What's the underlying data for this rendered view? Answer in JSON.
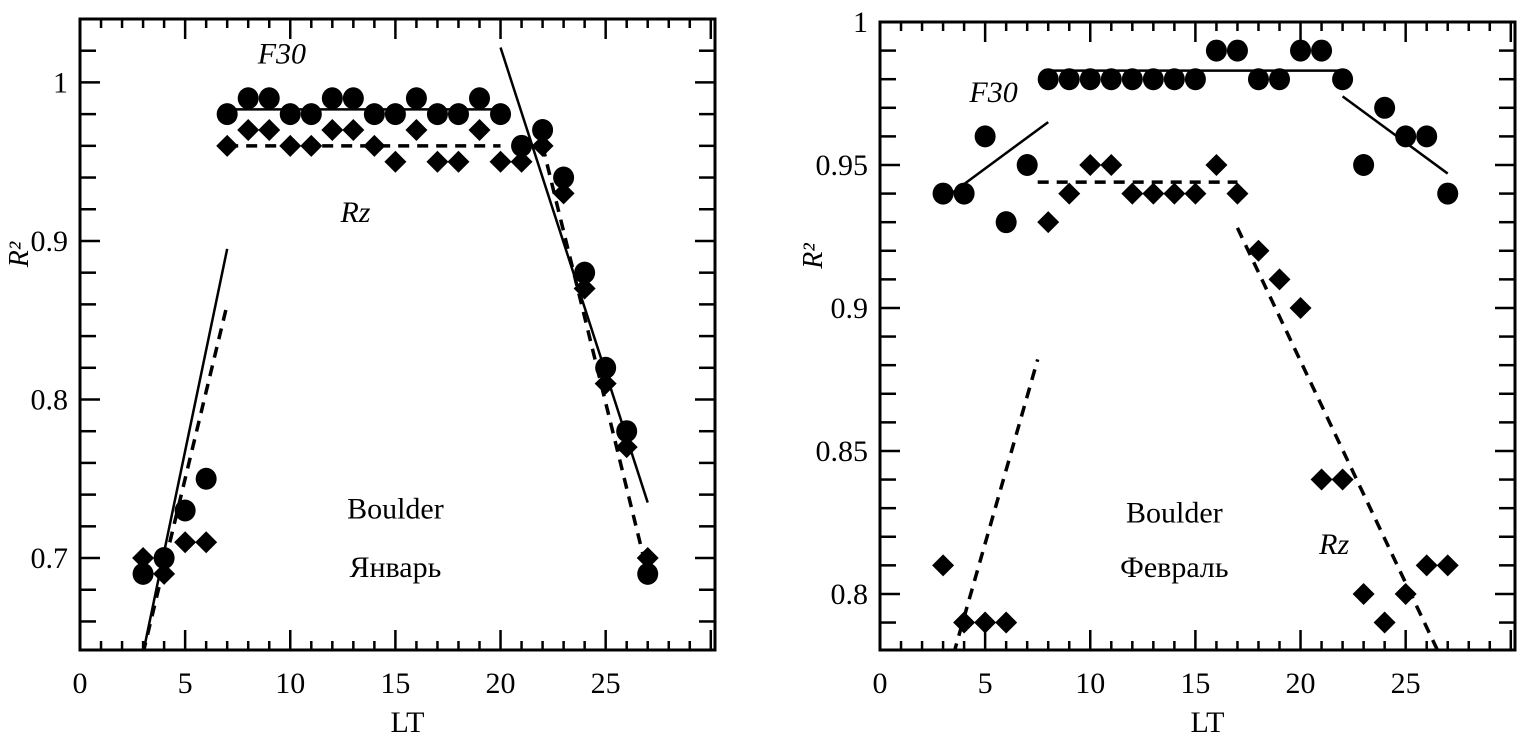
{
  "chart_data": [
    {
      "type": "scatter",
      "title": "",
      "xlabel": "LT",
      "ylabel": "R²",
      "xlim": [
        0,
        30.2
      ],
      "ylim": [
        0.642,
        1.04
      ],
      "xticks": [
        0,
        5,
        10,
        15,
        20,
        25
      ],
      "xtick_labels": [
        "0",
        "5",
        "10",
        "15",
        "20",
        "25"
      ],
      "yticks": [
        0.7,
        0.8,
        0.9,
        1.0
      ],
      "ytick_labels": [
        "0.7",
        "0.8",
        "0.9",
        "1"
      ],
      "grid": false,
      "series": [
        {
          "name": "F30",
          "marker": "circle",
          "x": [
            3,
            4,
            5,
            6,
            7,
            8,
            9,
            10,
            11,
            12,
            13,
            14,
            15,
            16,
            17,
            18,
            19,
            20,
            21,
            22,
            23,
            24,
            25,
            26,
            27
          ],
          "y": [
            0.69,
            0.7,
            0.73,
            0.75,
            0.98,
            0.99,
            0.99,
            0.98,
            0.98,
            0.99,
            0.99,
            0.98,
            0.98,
            0.99,
            0.98,
            0.98,
            0.99,
            0.98,
            0.96,
            0.97,
            0.94,
            0.88,
            0.82,
            0.78,
            0.69
          ]
        },
        {
          "name": "Rz",
          "marker": "diamond",
          "x": [
            3,
            4,
            5,
            6,
            7,
            8,
            9,
            10,
            11,
            12,
            13,
            14,
            15,
            16,
            17,
            18,
            19,
            20,
            21,
            22,
            23,
            24,
            25,
            26,
            27
          ],
          "y": [
            0.7,
            0.69,
            0.71,
            0.71,
            0.96,
            0.97,
            0.97,
            0.96,
            0.96,
            0.97,
            0.97,
            0.96,
            0.95,
            0.97,
            0.95,
            0.95,
            0.97,
            0.95,
            0.95,
            0.96,
            0.93,
            0.87,
            0.81,
            0.77,
            0.7
          ]
        }
      ],
      "fit_lines": [
        {
          "series": "F30",
          "style": "solid",
          "points": [
            [
              3,
              0.64
            ],
            [
              7,
              0.895
            ]
          ]
        },
        {
          "series": "F30",
          "style": "solid",
          "points": [
            [
              7,
              0.983
            ],
            [
              20,
              0.983
            ]
          ]
        },
        {
          "series": "F30",
          "style": "solid",
          "points": [
            [
              20,
              1.022
            ],
            [
              27,
              0.735
            ]
          ]
        },
        {
          "series": "Rz",
          "style": "dashed",
          "points": [
            [
              3,
              0.64
            ],
            [
              7,
              0.86
            ]
          ]
        },
        {
          "series": "Rz",
          "style": "dashed",
          "points": [
            [
              7,
              0.96
            ],
            [
              20,
              0.96
            ]
          ]
        },
        {
          "series": "Rz",
          "style": "dashed",
          "points": [
            [
              22,
              0.96
            ],
            [
              27,
              0.69
            ]
          ]
        }
      ],
      "annotations": [
        {
          "text": "F30",
          "x": 9.6,
          "y": 1.012,
          "italic": true
        },
        {
          "text": "Rz",
          "x": 13.1,
          "y": 0.912,
          "italic": true
        },
        {
          "text": "Boulder",
          "x": 15,
          "y": 0.725,
          "italic": false
        },
        {
          "text": "Январь",
          "x": 15,
          "y": 0.688,
          "italic": false
        }
      ]
    },
    {
      "type": "scatter",
      "title": "",
      "xlabel": "LT",
      "ylabel": "R²",
      "xlim": [
        0,
        30.2
      ],
      "ylim": [
        0.7804,
        1.0
      ],
      "xticks": [
        0,
        5,
        10,
        15,
        20,
        25
      ],
      "xtick_labels": [
        "0",
        "5",
        "10",
        "15",
        "20",
        "25"
      ],
      "yticks": [
        0.8,
        0.85,
        0.9,
        0.95,
        1.0
      ],
      "ytick_labels": [
        "0.8",
        "0.85",
        "0.9",
        "0.95",
        "1"
      ],
      "grid": false,
      "series": [
        {
          "name": "F30",
          "marker": "circle",
          "x": [
            3,
            4,
            5,
            6,
            7,
            8,
            9,
            10,
            11,
            12,
            13,
            14,
            15,
            16,
            17,
            18,
            19,
            20,
            21,
            22,
            23,
            24,
            25,
            26,
            27
          ],
          "y": [
            0.94,
            0.94,
            0.96,
            0.93,
            0.95,
            0.98,
            0.98,
            0.98,
            0.98,
            0.98,
            0.98,
            0.98,
            0.98,
            0.99,
            0.99,
            0.98,
            0.98,
            0.99,
            0.99,
            0.98,
            0.95,
            0.97,
            0.96,
            0.96,
            0.94
          ]
        },
        {
          "name": "Rz",
          "marker": "diamond",
          "x": [
            3,
            4,
            5,
            6,
            8,
            9,
            10,
            11,
            12,
            13,
            14,
            15,
            16,
            17,
            18,
            19,
            20,
            21,
            22,
            23,
            24,
            25,
            26,
            27
          ],
          "y": [
            0.81,
            0.79,
            0.79,
            0.79,
            0.93,
            0.94,
            0.95,
            0.95,
            0.94,
            0.94,
            0.94,
            0.94,
            0.95,
            0.94,
            0.92,
            0.91,
            0.9,
            0.84,
            0.84,
            0.8,
            0.79,
            0.8,
            0.81,
            0.81
          ]
        }
      ],
      "fit_lines": [
        {
          "series": "F30",
          "style": "solid",
          "points": [
            [
              3.2,
              0.939
            ],
            [
              8,
              0.965
            ]
          ]
        },
        {
          "series": "F30",
          "style": "solid",
          "points": [
            [
              8,
              0.983
            ],
            [
              22,
              0.983
            ]
          ]
        },
        {
          "series": "F30",
          "style": "solid",
          "points": [
            [
              22,
              0.974
            ],
            [
              27,
              0.947
            ]
          ]
        },
        {
          "series": "Rz",
          "style": "dashed",
          "points": [
            [
              3.5,
              0.779
            ],
            [
              7.5,
              0.882
            ]
          ]
        },
        {
          "series": "Rz",
          "style": "dashed",
          "points": [
            [
              7.5,
              0.944
            ],
            [
              17,
              0.944
            ]
          ]
        },
        {
          "series": "Rz",
          "style": "dashed",
          "points": [
            [
              17,
              0.928
            ],
            [
              26.6,
              0.779
            ]
          ]
        }
      ],
      "annotations": [
        {
          "text": "F30",
          "x": 5.4,
          "y": 0.972,
          "italic": true
        },
        {
          "text": "Boulder",
          "x": 14,
          "y": 0.825,
          "italic": false
        },
        {
          "text": "Февраль",
          "x": 14,
          "y": 0.806,
          "italic": false
        },
        {
          "text": "Rz",
          "x": 21.6,
          "y": 0.814,
          "italic": true
        }
      ]
    }
  ]
}
